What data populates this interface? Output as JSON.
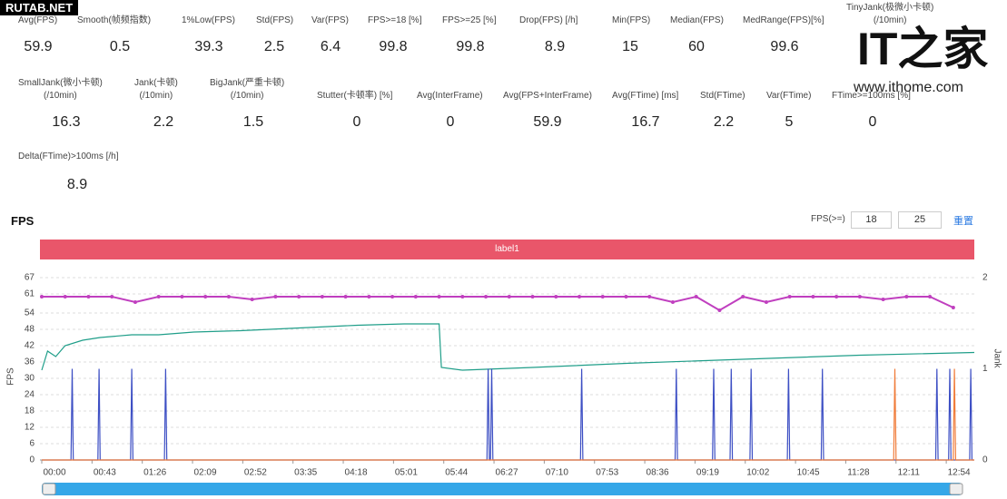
{
  "watermarks": {
    "site": "RUTAB.NET",
    "logo": "IT之家",
    "url": "www.ithome.com"
  },
  "stats": [
    [
      {
        "label": "Avg(FPS)",
        "value": 59.9
      },
      {
        "label": "Smooth(帧频指数)",
        "value": 0.5
      },
      {
        "label": "1%Low(FPS)",
        "value": 39.3
      },
      {
        "label": "Std(FPS)",
        "value": 2.5
      },
      {
        "label": "Var(FPS)",
        "value": 6.4
      },
      {
        "label": "FPS>=18 [%]",
        "value": 99.8
      },
      {
        "label": "FPS>=25 [%]",
        "value": 99.8
      },
      {
        "label": "Drop(FPS) [/h]",
        "value": 8.9
      },
      {
        "label": "Min(FPS)",
        "value": 15
      },
      {
        "label": "Median(FPS)",
        "value": 60
      },
      {
        "label": "MedRange(FPS)[%]",
        "value": 99.6
      },
      {
        "label": "TinyJank(极微小卡顿)\n(/10min)"
      }
    ],
    [
      {
        "label": "SmallJank(微小卡顿)\n(/10min)",
        "value": 16.3
      },
      {
        "label": "Jank(卡顿)\n(/10min)",
        "value": 2.2
      },
      {
        "label": "BigJank(严重卡顿)\n(/10min)",
        "value": 1.5
      },
      {
        "label": "Stutter(卡顿率) [%]",
        "value": 0
      },
      {
        "label": "Avg(InterFrame)",
        "value": 0
      },
      {
        "label": "Avg(FPS+InterFrame)",
        "value": 59.9
      },
      {
        "label": "Avg(FTime) [ms]",
        "value": 16.7
      },
      {
        "label": "Std(FTime)",
        "value": 2.2
      },
      {
        "label": "Var(FTime)",
        "value": 5
      },
      {
        "label": "FTime>=100ms [%]",
        "value": 0
      }
    ],
    [
      {
        "label": "Delta(FTime)>100ms [/h]",
        "value": 8.9
      }
    ]
  ],
  "controls": {
    "label": "FPS(>=)",
    "inputs": [
      18,
      25
    ],
    "reset": "重置"
  },
  "chart_data": {
    "type": "line",
    "title": "FPS",
    "band_label": "label1",
    "ylabel": "FPS",
    "y2label": "Jank",
    "grid": true,
    "xlim": [
      0,
      798
    ],
    "xticks": [
      {
        "value": 0,
        "label": "00:00"
      },
      {
        "value": 43,
        "label": "00:43"
      },
      {
        "value": 86,
        "label": "01:26"
      },
      {
        "value": 129,
        "label": "02:09"
      },
      {
        "value": 172,
        "label": "02:52"
      },
      {
        "value": 215,
        "label": "03:35"
      },
      {
        "value": 258,
        "label": "04:18"
      },
      {
        "value": 301,
        "label": "05:01"
      },
      {
        "value": 344,
        "label": "05:44"
      },
      {
        "value": 387,
        "label": "06:27"
      },
      {
        "value": 430,
        "label": "07:10"
      },
      {
        "value": 473,
        "label": "07:53"
      },
      {
        "value": 516,
        "label": "08:36"
      },
      {
        "value": 559,
        "label": "09:19"
      },
      {
        "value": 602,
        "label": "10:02"
      },
      {
        "value": 645,
        "label": "10:45"
      },
      {
        "value": 688,
        "label": "11:28"
      },
      {
        "value": 731,
        "label": "12:11"
      },
      {
        "value": 774,
        "label": "12:54"
      }
    ],
    "ylim": [
      0,
      67
    ],
    "yticks": [
      0,
      6,
      12,
      18,
      24,
      30,
      36,
      42,
      48,
      54,
      61,
      67
    ],
    "y2lim": [
      0,
      2
    ],
    "y2ticks": [
      0,
      1,
      2
    ],
    "series": [
      {
        "color": "#c03fbf",
        "x": [
          0,
          20,
          40,
          60,
          80,
          100,
          120,
          140,
          160,
          180,
          200,
          220,
          240,
          260,
          280,
          300,
          320,
          340,
          360,
          380,
          400,
          420,
          440,
          460,
          480,
          500,
          520,
          540,
          560,
          580,
          600,
          620,
          640,
          660,
          680,
          700,
          720,
          740,
          760,
          780
        ],
        "values": [
          60,
          60,
          60,
          60,
          58,
          60,
          60,
          60,
          60,
          59,
          60,
          60,
          60,
          60,
          60,
          60,
          60,
          60,
          60,
          60,
          60,
          60,
          60,
          60,
          60,
          60,
          60,
          58,
          60,
          55,
          60,
          58,
          60,
          60,
          60,
          60,
          59,
          60,
          60,
          56
        ]
      },
      {
        "color": "#1f9e89",
        "x": [
          0,
          5,
          12,
          20,
          35,
          50,
          77,
          100,
          130,
          170,
          220,
          270,
          310,
          340,
          342,
          360,
          420,
          500,
          600,
          700,
          798
        ],
        "values": [
          33,
          40,
          38,
          42,
          44,
          45,
          46,
          46,
          47,
          47.5,
          48.5,
          49.5,
          50,
          50,
          34,
          33,
          34,
          35.5,
          37,
          38.5,
          39.5
        ]
      },
      {
        "color": "#3d4fc4",
        "axis": "y2",
        "x": [
          0,
          25,
          26,
          27,
          48,
          49,
          50,
          76,
          77,
          78,
          105,
          106,
          107,
          381,
          382,
          383,
          384,
          385,
          386,
          461,
          462,
          463,
          542,
          543,
          544,
          574,
          575,
          576,
          589,
          590,
          591,
          606,
          607,
          608,
          638,
          639,
          640,
          667,
          668,
          669,
          765,
          766,
          767,
          776,
          777,
          778,
          794,
          795,
          796,
          798
        ],
        "values": [
          0,
          0,
          1,
          0,
          0,
          1,
          0,
          0,
          1,
          0,
          0,
          1,
          0,
          0,
          1,
          0,
          0,
          1,
          0,
          0,
          1,
          0,
          0,
          1,
          0,
          0,
          1,
          0,
          0,
          1,
          0,
          0,
          1,
          0,
          0,
          1,
          0,
          0,
          1,
          0,
          0,
          1,
          0,
          0,
          1,
          0,
          0,
          1,
          0,
          0
        ]
      },
      {
        "color": "#f07c3a",
        "axis": "y2",
        "x": [
          0,
          729,
          730,
          731,
          780,
          781,
          782,
          798
        ],
        "values": [
          0,
          0,
          1,
          0,
          0,
          1,
          0,
          0
        ]
      }
    ]
  }
}
